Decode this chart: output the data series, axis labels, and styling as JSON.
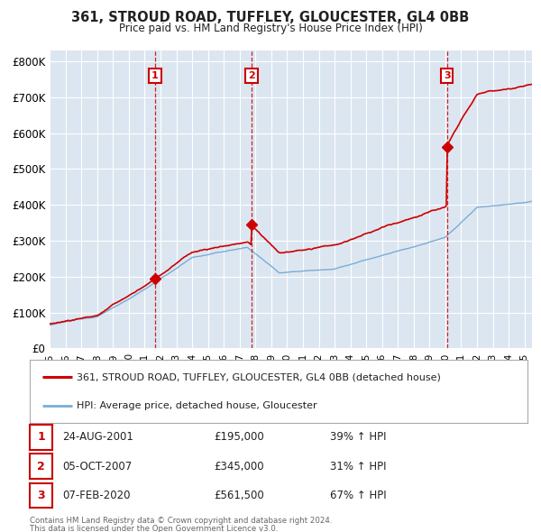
{
  "title1": "361, STROUD ROAD, TUFFLEY, GLOUCESTER, GL4 0BB",
  "title2": "Price paid vs. HM Land Registry's House Price Index (HPI)",
  "ylim": [
    0,
    830000
  ],
  "yticks": [
    0,
    100000,
    200000,
    300000,
    400000,
    500000,
    600000,
    700000,
    800000
  ],
  "ytick_labels": [
    "£0",
    "£100K",
    "£200K",
    "£300K",
    "£400K",
    "£500K",
    "£600K",
    "£700K",
    "£800K"
  ],
  "plot_bg_color": "#dce6f1",
  "grid_color": "#ffffff",
  "hpi_color": "#7aadd4",
  "price_color": "#cc0000",
  "sale_marker_color": "#cc0000",
  "purchases": [
    {
      "date_num": 2001.65,
      "price": 195000,
      "label": "1",
      "date_str": "24-AUG-2001",
      "pct": "39%"
    },
    {
      "date_num": 2007.76,
      "price": 345000,
      "label": "2",
      "date_str": "05-OCT-2007",
      "pct": "31%"
    },
    {
      "date_num": 2020.1,
      "price": 561500,
      "label": "3",
      "date_str": "07-FEB-2020",
      "pct": "67%"
    }
  ],
  "legend_entries": [
    "361, STROUD ROAD, TUFFLEY, GLOUCESTER, GL4 0BB (detached house)",
    "HPI: Average price, detached house, Gloucester"
  ],
  "footer1": "Contains HM Land Registry data © Crown copyright and database right 2024.",
  "footer2": "This data is licensed under the Open Government Licence v3.0.",
  "xmin": 1995,
  "xmax": 2025.5,
  "xticks": [
    1995,
    1996,
    1997,
    1998,
    1999,
    2000,
    2001,
    2002,
    2003,
    2004,
    2005,
    2006,
    2007,
    2008,
    2009,
    2010,
    2011,
    2012,
    2013,
    2014,
    2015,
    2016,
    2017,
    2018,
    2019,
    2020,
    2021,
    2022,
    2023,
    2024,
    2025
  ]
}
